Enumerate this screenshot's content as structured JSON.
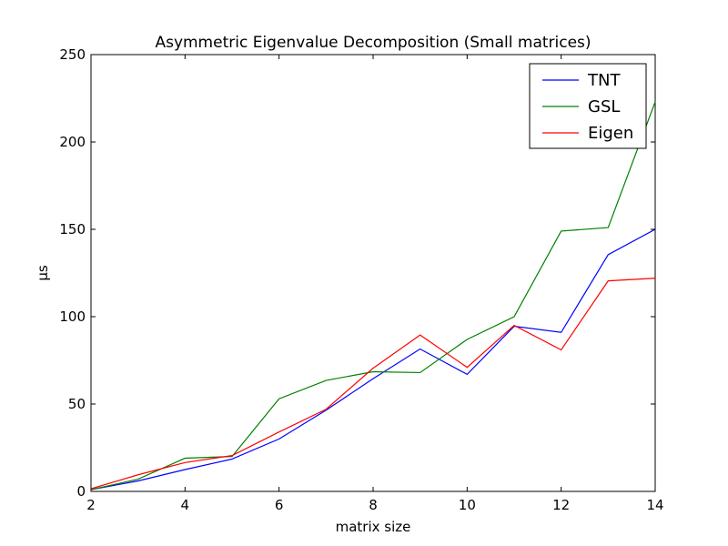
{
  "chart_data": {
    "type": "line",
    "title": "Asymmetric Eigenvalue Decomposition (Small matrices)",
    "xlabel": "matrix size",
    "ylabel": "μs",
    "xlim": [
      2,
      14
    ],
    "ylim": [
      0,
      250
    ],
    "xticks": [
      2,
      4,
      6,
      8,
      10,
      12,
      14
    ],
    "yticks": [
      0,
      50,
      100,
      150,
      200,
      250
    ],
    "grid": false,
    "legend": "top-right",
    "x": [
      2,
      3,
      4,
      5,
      6,
      7,
      8,
      9,
      10,
      11,
      12,
      13,
      14
    ],
    "series": [
      {
        "name": "TNT",
        "color": "#0000ff",
        "values": [
          1,
          6,
          12.5,
          18.5,
          30,
          46.5,
          64.5,
          81.5,
          67,
          94.5,
          91,
          135.5,
          150
        ]
      },
      {
        "name": "GSL",
        "color": "#008000",
        "values": [
          1,
          7,
          19,
          20,
          53,
          63.5,
          68.5,
          68,
          87,
          100,
          149,
          151,
          223
        ]
      },
      {
        "name": "Eigen",
        "color": "#ff0000",
        "values": [
          1.5,
          9.5,
          16.5,
          20.5,
          34,
          47,
          70.5,
          89.5,
          71,
          95,
          81,
          120.5,
          122
        ]
      }
    ]
  }
}
